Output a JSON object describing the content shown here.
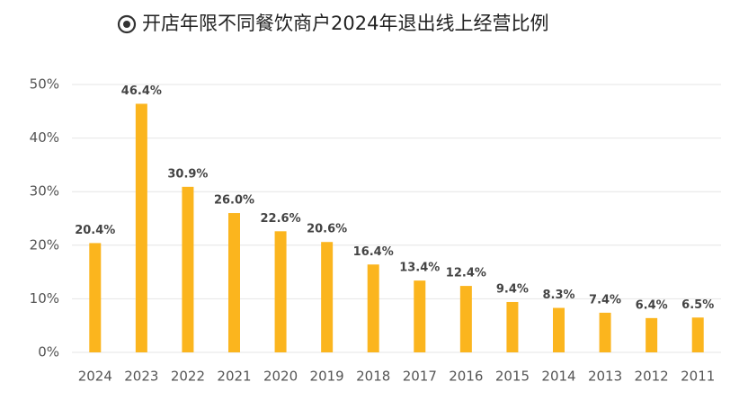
{
  "chart_data": {
    "type": "bar",
    "title": "开店年限不同餐饮商户2024年退出线上经营比例",
    "categories": [
      "2024",
      "2023",
      "2022",
      "2021",
      "2020",
      "2019",
      "2018",
      "2017",
      "2016",
      "2015",
      "2014",
      "2013",
      "2012",
      "2011"
    ],
    "values": [
      20.4,
      46.4,
      30.9,
      26.0,
      22.6,
      20.6,
      16.4,
      13.4,
      12.4,
      9.4,
      8.3,
      7.4,
      6.4,
      6.5
    ],
    "value_labels": [
      "20.4%",
      "46.4%",
      "30.9%",
      "26.0%",
      "22.6%",
      "20.6%",
      "16.4%",
      "13.4%",
      "12.4%",
      "9.4%",
      "8.3%",
      "7.4%",
      "6.4%",
      "6.5%"
    ],
    "color": "#fbb51e",
    "ylim": [
      0,
      50
    ],
    "yticks": [
      {
        "value": 0,
        "label": "0%"
      },
      {
        "value": 10,
        "label": "10%"
      },
      {
        "value": 20,
        "label": "20%"
      },
      {
        "value": 30,
        "label": "30%"
      },
      {
        "value": 40,
        "label": "40%"
      },
      {
        "value": 50,
        "label": "50%"
      }
    ],
    "grid": true
  }
}
